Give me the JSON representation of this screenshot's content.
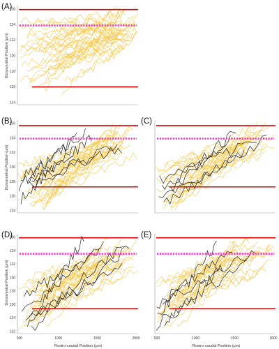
{
  "chart_data": [
    {
      "type": "line",
      "panel_label": "(A)",
      "ylabel": "Dorsoventral Position (μm)",
      "y_ticks": [
        "126",
        "124",
        "122",
        "120",
        "118",
        "116",
        "114"
      ],
      "reference_lines": [
        {
          "name": "upper boundary",
          "color": "#e00000",
          "y_frac": 0.04
        },
        {
          "name": "midline",
          "color": "#ff33cc",
          "y_frac": 0.2,
          "dashed": true
        },
        {
          "name": "lower boundary",
          "color": "#e00000",
          "y_frac": 0.82
        }
      ],
      "tracks": {
        "count": 38,
        "color": "#f5c84a",
        "highlight_count": 0
      },
      "colors": {
        "tracks": "#f5c84a",
        "highlight": "#222222"
      }
    },
    {
      "type": "line",
      "panel_label": "(B)",
      "ylabel": "Dorsoventral Position (μm)",
      "y_ticks": [
        "136",
        "134",
        "132",
        "130",
        "128",
        "126",
        "124"
      ],
      "reference_lines": [
        {
          "name": "upper boundary",
          "color": "#e00000",
          "y_frac": 0.06
        },
        {
          "name": "midline",
          "color": "#ff33cc",
          "y_frac": 0.2,
          "dashed": true
        },
        {
          "name": "lower boundary",
          "color": "#e00000",
          "y_frac": 0.72
        }
      ],
      "tracks": {
        "count": 30,
        "color": "#f5c84a",
        "highlight_count": 6
      },
      "colors": {
        "tracks": "#f5c84a",
        "highlight": "#222222"
      }
    },
    {
      "type": "line",
      "panel_label": "(C)",
      "reference_lines": [
        {
          "name": "upper boundary",
          "color": "#e00000",
          "y_frac": 0.06
        },
        {
          "name": "midline",
          "color": "#ff33cc",
          "y_frac": 0.2,
          "dashed": true
        },
        {
          "name": "lower boundary",
          "color": "#e00000",
          "y_frac": 0.72
        }
      ],
      "tracks": {
        "count": 26,
        "color": "#f5c84a",
        "highlight_count": 5
      },
      "colors": {
        "tracks": "#f5c84a",
        "highlight": "#222222"
      }
    },
    {
      "type": "line",
      "panel_label": "(D)",
      "ylabel": "Dorsoventral Position (μm)",
      "xlabel": "Rostro-caudal Position (μm)",
      "x_ticks": [
        "500",
        "1000",
        "1500",
        "2000"
      ],
      "y_ticks": [
        "136",
        "134",
        "132",
        "130",
        "128",
        "126",
        "124",
        "122"
      ],
      "reference_lines": [
        {
          "name": "upper boundary",
          "color": "#e00000",
          "y_frac": 0.04
        },
        {
          "name": "midline",
          "color": "#ff33cc",
          "y_frac": 0.2,
          "dashed": true
        },
        {
          "name": "lower boundary",
          "color": "#e00000",
          "y_frac": 0.75
        }
      ],
      "tracks": {
        "count": 30,
        "color": "#f5c84a",
        "highlight_count": 6
      },
      "colors": {
        "tracks": "#f5c84a",
        "highlight": "#222222"
      }
    },
    {
      "type": "line",
      "panel_label": "(E)",
      "xlabel": "Rostro-caudal Position (μm)",
      "x_ticks": [
        "500",
        "1000",
        "1500",
        "2000"
      ],
      "reference_lines": [
        {
          "name": "upper boundary",
          "color": "#e00000",
          "y_frac": 0.04
        },
        {
          "name": "midline",
          "color": "#ff33cc",
          "y_frac": 0.2,
          "dashed": true
        },
        {
          "name": "lower boundary",
          "color": "#e00000",
          "y_frac": 0.75
        }
      ],
      "tracks": {
        "count": 26,
        "color": "#f5c84a",
        "highlight_count": 5
      },
      "colors": {
        "tracks": "#f5c84a",
        "highlight": "#222222"
      }
    }
  ]
}
